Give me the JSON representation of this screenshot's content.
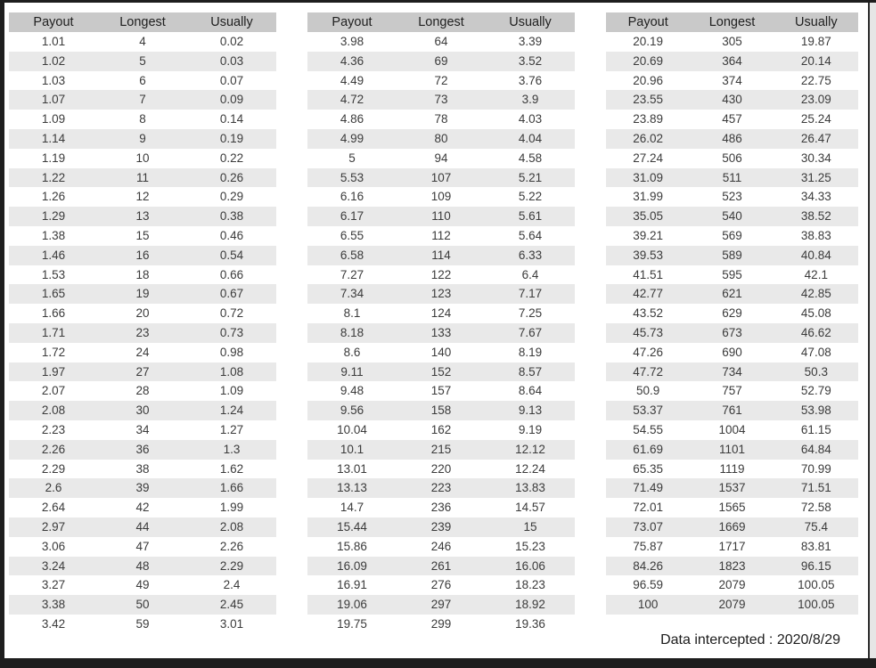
{
  "window": {
    "footer_note": "Data intercepted : 2020/8/29"
  },
  "columns": [
    "Payout",
    "Longest",
    "Usually"
  ],
  "colors": {
    "header_bg": "#c9c9c9",
    "stripe_bg": "#e9e9e9",
    "row_bg": "#ffffff",
    "text": "#3b3b3b",
    "header_text": "#202020",
    "frame": "#1e1e1e"
  },
  "tables": [
    {
      "rows": [
        [
          "1.01",
          "4",
          "0.02"
        ],
        [
          "1.02",
          "5",
          "0.03"
        ],
        [
          "1.03",
          "6",
          "0.07"
        ],
        [
          "1.07",
          "7",
          "0.09"
        ],
        [
          "1.09",
          "8",
          "0.14"
        ],
        [
          "1.14",
          "9",
          "0.19"
        ],
        [
          "1.19",
          "10",
          "0.22"
        ],
        [
          "1.22",
          "11",
          "0.26"
        ],
        [
          "1.26",
          "12",
          "0.29"
        ],
        [
          "1.29",
          "13",
          "0.38"
        ],
        [
          "1.38",
          "15",
          "0.46"
        ],
        [
          "1.46",
          "16",
          "0.54"
        ],
        [
          "1.53",
          "18",
          "0.66"
        ],
        [
          "1.65",
          "19",
          "0.67"
        ],
        [
          "1.66",
          "20",
          "0.72"
        ],
        [
          "1.71",
          "23",
          "0.73"
        ],
        [
          "1.72",
          "24",
          "0.98"
        ],
        [
          "1.97",
          "27",
          "1.08"
        ],
        [
          "2.07",
          "28",
          "1.09"
        ],
        [
          "2.08",
          "30",
          "1.24"
        ],
        [
          "2.23",
          "34",
          "1.27"
        ],
        [
          "2.26",
          "36",
          "1.3"
        ],
        [
          "2.29",
          "38",
          "1.62"
        ],
        [
          "2.6",
          "39",
          "1.66"
        ],
        [
          "2.64",
          "42",
          "1.99"
        ],
        [
          "2.97",
          "44",
          "2.08"
        ],
        [
          "3.06",
          "47",
          "2.26"
        ],
        [
          "3.24",
          "48",
          "2.29"
        ],
        [
          "3.27",
          "49",
          "2.4"
        ],
        [
          "3.38",
          "50",
          "2.45"
        ],
        [
          "3.42",
          "59",
          "3.01"
        ]
      ]
    },
    {
      "rows": [
        [
          "3.98",
          "64",
          "3.39"
        ],
        [
          "4.36",
          "69",
          "3.52"
        ],
        [
          "4.49",
          "72",
          "3.76"
        ],
        [
          "4.72",
          "73",
          "3.9"
        ],
        [
          "4.86",
          "78",
          "4.03"
        ],
        [
          "4.99",
          "80",
          "4.04"
        ],
        [
          "5",
          "94",
          "4.58"
        ],
        [
          "5.53",
          "107",
          "5.21"
        ],
        [
          "6.16",
          "109",
          "5.22"
        ],
        [
          "6.17",
          "110",
          "5.61"
        ],
        [
          "6.55",
          "112",
          "5.64"
        ],
        [
          "6.58",
          "114",
          "6.33"
        ],
        [
          "7.27",
          "122",
          "6.4"
        ],
        [
          "7.34",
          "123",
          "7.17"
        ],
        [
          "8.1",
          "124",
          "7.25"
        ],
        [
          "8.18",
          "133",
          "7.67"
        ],
        [
          "8.6",
          "140",
          "8.19"
        ],
        [
          "9.11",
          "152",
          "8.57"
        ],
        [
          "9.48",
          "157",
          "8.64"
        ],
        [
          "9.56",
          "158",
          "9.13"
        ],
        [
          "10.04",
          "162",
          "9.19"
        ],
        [
          "10.1",
          "215",
          "12.12"
        ],
        [
          "13.01",
          "220",
          "12.24"
        ],
        [
          "13.13",
          "223",
          "13.83"
        ],
        [
          "14.7",
          "236",
          "14.57"
        ],
        [
          "15.44",
          "239",
          "15"
        ],
        [
          "15.86",
          "246",
          "15.23"
        ],
        [
          "16.09",
          "261",
          "16.06"
        ],
        [
          "16.91",
          "276",
          "18.23"
        ],
        [
          "19.06",
          "297",
          "18.92"
        ],
        [
          "19.75",
          "299",
          "19.36"
        ]
      ]
    },
    {
      "rows": [
        [
          "20.19",
          "305",
          "19.87"
        ],
        [
          "20.69",
          "364",
          "20.14"
        ],
        [
          "20.96",
          "374",
          "22.75"
        ],
        [
          "23.55",
          "430",
          "23.09"
        ],
        [
          "23.89",
          "457",
          "25.24"
        ],
        [
          "26.02",
          "486",
          "26.47"
        ],
        [
          "27.24",
          "506",
          "30.34"
        ],
        [
          "31.09",
          "511",
          "31.25"
        ],
        [
          "31.99",
          "523",
          "34.33"
        ],
        [
          "35.05",
          "540",
          "38.52"
        ],
        [
          "39.21",
          "569",
          "38.83"
        ],
        [
          "39.53",
          "589",
          "40.84"
        ],
        [
          "41.51",
          "595",
          "42.1"
        ],
        [
          "42.77",
          "621",
          "42.85"
        ],
        [
          "43.52",
          "629",
          "45.08"
        ],
        [
          "45.73",
          "673",
          "46.62"
        ],
        [
          "47.26",
          "690",
          "47.08"
        ],
        [
          "47.72",
          "734",
          "50.3"
        ],
        [
          "50.9",
          "757",
          "52.79"
        ],
        [
          "53.37",
          "761",
          "53.98"
        ],
        [
          "54.55",
          "1004",
          "61.15"
        ],
        [
          "61.69",
          "1101",
          "64.84"
        ],
        [
          "65.35",
          "1119",
          "70.99"
        ],
        [
          "71.49",
          "1537",
          "71.51"
        ],
        [
          "72.01",
          "1565",
          "72.58"
        ],
        [
          "73.07",
          "1669",
          "75.4"
        ],
        [
          "75.87",
          "1717",
          "83.81"
        ],
        [
          "84.26",
          "1823",
          "96.15"
        ],
        [
          "96.59",
          "2079",
          "100.05"
        ],
        [
          "100",
          "2079",
          "100.05"
        ]
      ]
    }
  ]
}
